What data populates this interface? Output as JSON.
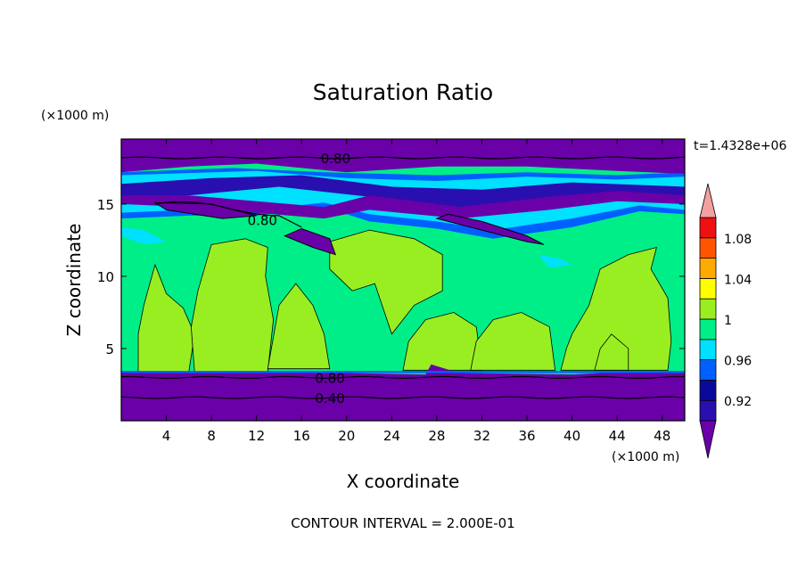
{
  "chart_data": {
    "type": "heatmap",
    "title": "Saturation Ratio",
    "xlabel": "X coordinate",
    "ylabel": "Z coordinate",
    "x_units": "(×1000 m)",
    "y_units": "(×1000 m)",
    "time_label": "t=1.4328e+06",
    "footer": "CONTOUR INTERVAL = 2.000E-01",
    "xlim": [
      0,
      50
    ],
    "ylim": [
      0,
      19.5
    ],
    "x_ticks": [
      4,
      8,
      12,
      16,
      20,
      24,
      28,
      32,
      36,
      40,
      44,
      48
    ],
    "y_ticks": [
      5,
      10,
      15
    ],
    "grid": false,
    "colorbar": {
      "placement": "right",
      "levels": [
        0.9,
        0.92,
        0.94,
        0.96,
        0.98,
        1.0,
        1.02,
        1.04,
        1.06,
        1.08,
        1.1
      ],
      "tick_labels": [
        "0.92",
        "0.96",
        "1",
        "1.04",
        "1.08"
      ],
      "tick_values": [
        0.92,
        0.96,
        1.0,
        1.04,
        1.08
      ],
      "colors": [
        "#6a00a8",
        "#2a0fb0",
        "#0a0a9a",
        "#0060ff",
        "#00e0ff",
        "#00ee88",
        "#99ee22",
        "#ffff00",
        "#ffaa00",
        "#ff5500",
        "#ee1111",
        "#f4a0a0"
      ],
      "under_color": "#6a00a8",
      "over_color": "#f4a0a0"
    },
    "contour_lines": [
      {
        "label": "0.80",
        "z": 18.2,
        "label_x": 17.7
      },
      {
        "label": "0.80",
        "z": 3.0,
        "label_x": 17.2
      },
      {
        "label": "0.40",
        "z": 1.6,
        "label_x": 17.2
      },
      {
        "label": "0.80",
        "z": 13.9,
        "label_x": 11.2
      }
    ],
    "regions": {
      "base_fill": "#00ee88",
      "bottom_band": {
        "z": [
          0,
          3.3
        ],
        "color": "#6a00a8"
      },
      "top_band": {
        "z": [
          17.1,
          19.5
        ],
        "color": "#6a00a8"
      },
      "upper_layer": {
        "z": [
          13.2,
          17.3
        ],
        "colors": [
          "#0060ff",
          "#00e0ff",
          "#2a0fb0",
          "#6a00a8"
        ]
      },
      "supersat_patches_color": "#99ee22"
    }
  }
}
